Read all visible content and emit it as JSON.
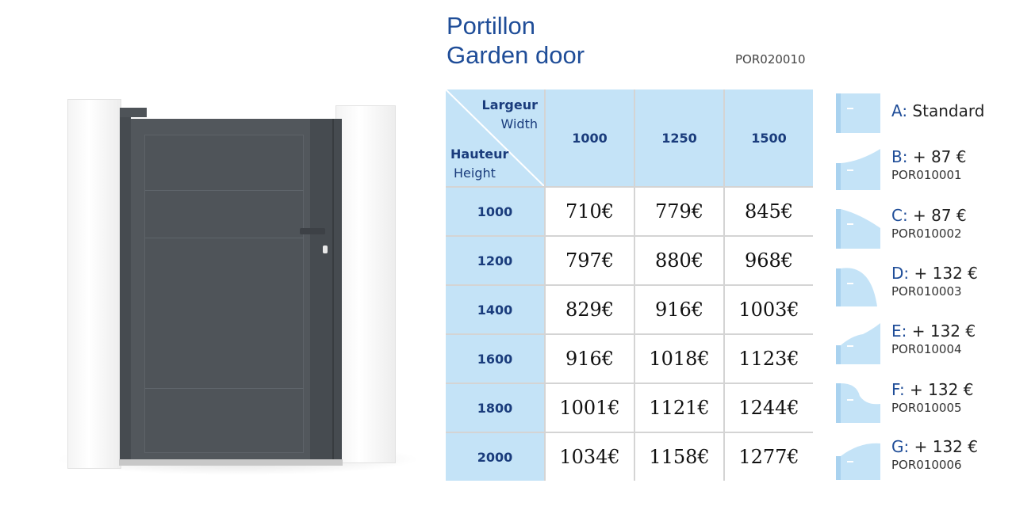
{
  "title": {
    "fr": "Portillon",
    "en": "Garden door"
  },
  "reference": "POR020010",
  "table": {
    "width_label_fr": "Largeur",
    "width_label_en": "Width",
    "height_label_fr": "Hauteur",
    "height_label_en": "Height",
    "widths": [
      "1000",
      "1250",
      "1500"
    ],
    "rows": [
      {
        "height": "1000",
        "prices": [
          "710€",
          "779€",
          "845€"
        ]
      },
      {
        "height": "1200",
        "prices": [
          "797€",
          "880€",
          "968€"
        ]
      },
      {
        "height": "1400",
        "prices": [
          "829€",
          "916€",
          "1003€"
        ]
      },
      {
        "height": "1600",
        "prices": [
          "916€",
          "1018€",
          "1123€"
        ]
      },
      {
        "height": "1800",
        "prices": [
          "1001€",
          "1121€",
          "1244€"
        ]
      },
      {
        "height": "2000",
        "prices": [
          "1034€",
          "1158€",
          "1277€"
        ]
      }
    ]
  },
  "options": [
    {
      "letter": "A:",
      "label": " Standard",
      "code": "",
      "icon": "straight-top-icon"
    },
    {
      "letter": "B:",
      "label": " + 87 €",
      "code": "POR010001",
      "icon": "convex-rising-top-icon"
    },
    {
      "letter": "C:",
      "label": " + 87 €",
      "code": "POR010002",
      "icon": "concave-falling-top-icon"
    },
    {
      "letter": "D:",
      "label": " + 132 €",
      "code": "POR010003",
      "icon": "rounded-peak-top-icon"
    },
    {
      "letter": "E:",
      "label": " + 132 €",
      "code": "POR010004",
      "icon": "wave-rising-top-icon"
    },
    {
      "letter": "F:",
      "label": " + 132 €",
      "code": "POR010005",
      "icon": "concave-rising-top-icon"
    },
    {
      "letter": "G:",
      "label": " + 132 €",
      "code": "POR010006",
      "icon": "convex-low-top-icon"
    }
  ]
}
